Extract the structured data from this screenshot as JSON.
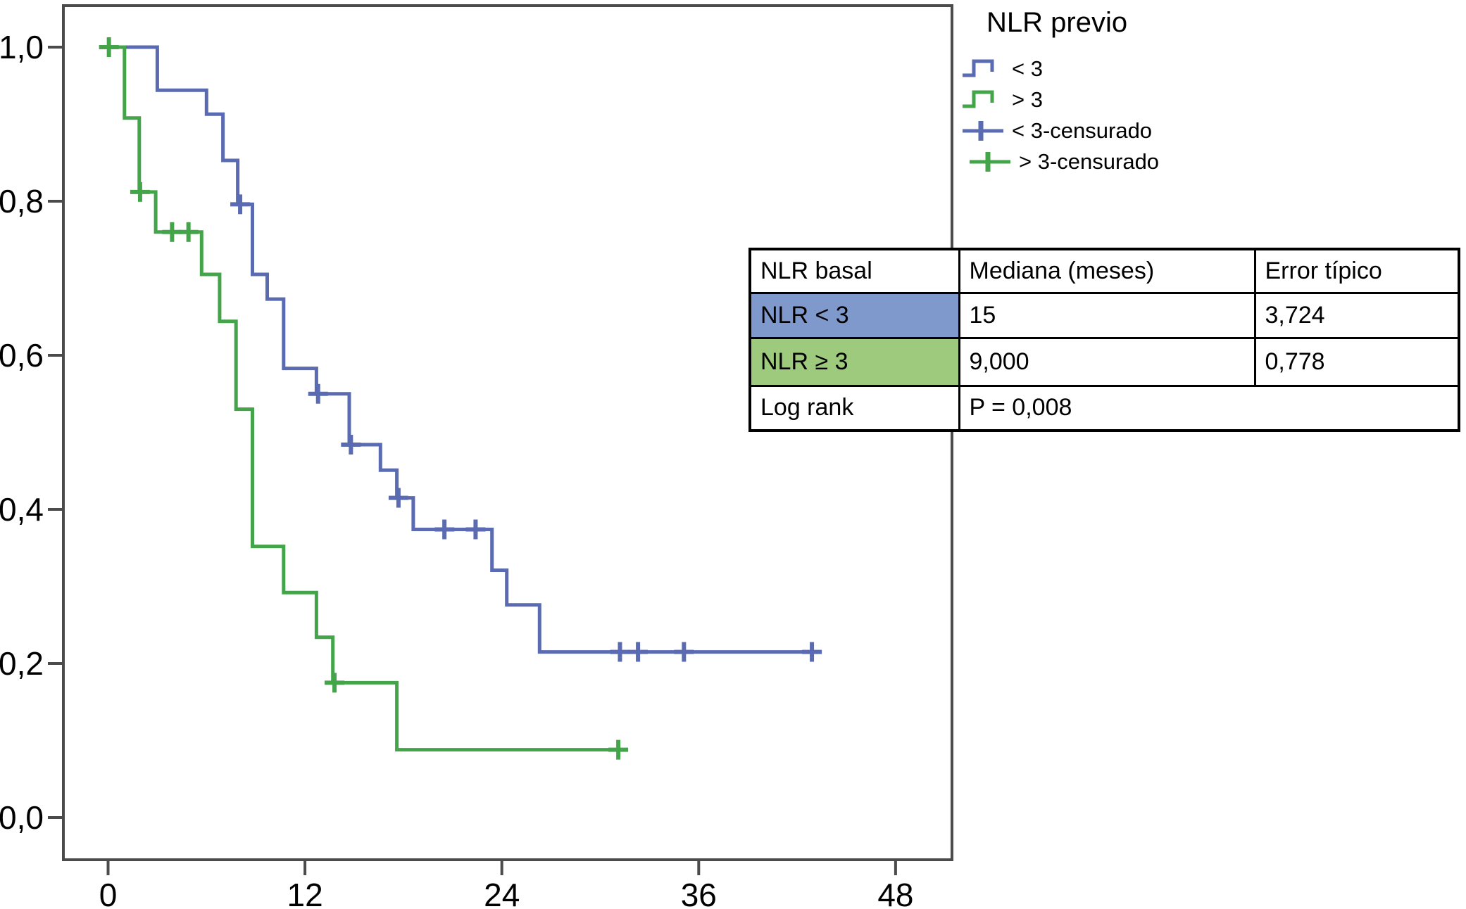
{
  "colors": {
    "blue": "#5a6bb2",
    "green": "#44a44a",
    "table_blue": "#8099cc",
    "table_green": "#9dca7d",
    "border": "#4b4b4b",
    "text": "#000000"
  },
  "legend": {
    "title": "NLR previo",
    "items": [
      {
        "label": "< 3",
        "type": "step",
        "color_key": "blue"
      },
      {
        "label": "> 3",
        "type": "step",
        "color_key": "green"
      },
      {
        "label": "< 3-censurado",
        "type": "censor",
        "color_key": "blue"
      },
      {
        "label": "> 3-censurado",
        "type": "censor",
        "color_key": "green"
      }
    ]
  },
  "stats_table": {
    "headers": [
      "NLR basal",
      "Mediana (meses)",
      "Error típico"
    ],
    "rows": [
      {
        "label": "NLR < 3",
        "median": "15",
        "se": "3,724",
        "bg_key": "table_blue"
      },
      {
        "label": "NLR ≥ 3",
        "median": "9,000",
        "se": "0,778",
        "bg_key": "table_green"
      }
    ],
    "footer": {
      "label": "Log rank",
      "value": "P = 0,008"
    }
  },
  "chart_data": {
    "type": "line",
    "subtype": "kaplan-meier-step",
    "title": "",
    "xlabel": "",
    "ylabel": "",
    "xlim": [
      -2.7,
      51.4
    ],
    "ylim": [
      -0.055,
      1.054
    ],
    "grid": false,
    "legend_position": "top-right-outside",
    "x_ticks": {
      "values": [
        0,
        12,
        24,
        36,
        48
      ],
      "labels": [
        "0",
        "12",
        "24",
        "36",
        "48"
      ]
    },
    "y_ticks": {
      "values": [
        0,
        0.2,
        0.4,
        0.6,
        0.8,
        1.0
      ],
      "labels": [
        "0,0",
        "0,2",
        "0,4",
        "0,6",
        "0,8",
        "1,0"
      ]
    },
    "series": [
      {
        "id": "lt3",
        "name": "< 3",
        "color_key": "blue",
        "points": [
          [
            0,
            1.0
          ],
          [
            3,
            1.0
          ],
          [
            3,
            0.944
          ],
          [
            6,
            0.944
          ],
          [
            6,
            0.913
          ],
          [
            7,
            0.913
          ],
          [
            7,
            0.853
          ],
          [
            7.9,
            0.853
          ],
          [
            7.9,
            0.796
          ],
          [
            8.8,
            0.796
          ],
          [
            8.8,
            0.705
          ],
          [
            9.7,
            0.705
          ],
          [
            9.7,
            0.673
          ],
          [
            10.7,
            0.673
          ],
          [
            10.7,
            0.583
          ],
          [
            12.7,
            0.583
          ],
          [
            12.7,
            0.55
          ],
          [
            14.7,
            0.55
          ],
          [
            14.7,
            0.484
          ],
          [
            16.6,
            0.484
          ],
          [
            16.6,
            0.451
          ],
          [
            17.6,
            0.451
          ],
          [
            17.6,
            0.415
          ],
          [
            18.6,
            0.415
          ],
          [
            18.6,
            0.374
          ],
          [
            23.4,
            0.374
          ],
          [
            23.4,
            0.321
          ],
          [
            24.3,
            0.321
          ],
          [
            24.3,
            0.276
          ],
          [
            26.3,
            0.276
          ],
          [
            26.3,
            0.215
          ],
          [
            43.5,
            0.215
          ]
        ],
        "censored": [
          [
            8.05,
            0.796
          ],
          [
            12.8,
            0.55
          ],
          [
            14.8,
            0.484
          ],
          [
            17.7,
            0.415
          ],
          [
            20.5,
            0.374
          ],
          [
            22.4,
            0.374
          ],
          [
            31.2,
            0.215
          ],
          [
            32.3,
            0.215
          ],
          [
            35.1,
            0.215
          ],
          [
            42.9,
            0.215
          ]
        ]
      },
      {
        "id": "gte3",
        "name": "> 3",
        "color_key": "green",
        "points": [
          [
            0,
            1.0
          ],
          [
            1,
            1.0
          ],
          [
            1,
            0.908
          ],
          [
            1.9,
            0.908
          ],
          [
            1.9,
            0.812
          ],
          [
            2.9,
            0.812
          ],
          [
            2.9,
            0.76
          ],
          [
            5.7,
            0.76
          ],
          [
            5.7,
            0.705
          ],
          [
            6.8,
            0.705
          ],
          [
            6.8,
            0.644
          ],
          [
            7.8,
            0.644
          ],
          [
            7.8,
            0.53
          ],
          [
            8.8,
            0.53
          ],
          [
            8.8,
            0.352
          ],
          [
            10.7,
            0.352
          ],
          [
            10.7,
            0.292
          ],
          [
            12.7,
            0.292
          ],
          [
            12.7,
            0.234
          ],
          [
            13.7,
            0.234
          ],
          [
            13.7,
            0.175
          ],
          [
            17.6,
            0.175
          ],
          [
            17.6,
            0.088
          ],
          [
            31.4,
            0.088
          ]
        ],
        "censored": [
          [
            0.05,
            1.0
          ],
          [
            1.95,
            0.812
          ],
          [
            3.9,
            0.76
          ],
          [
            4.9,
            0.76
          ],
          [
            13.8,
            0.175
          ],
          [
            31.1,
            0.088
          ]
        ]
      }
    ]
  }
}
